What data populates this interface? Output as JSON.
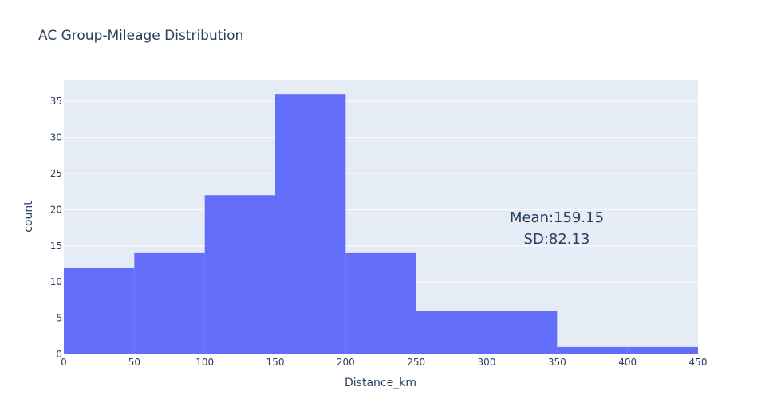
{
  "chart_data": {
    "type": "bar",
    "subtype": "histogram",
    "title": "AC Group-Mileage Distribution",
    "xlabel": "Distance_km",
    "ylabel": "count",
    "bins": [
      {
        "x0": 0,
        "x1": 50,
        "count": 12
      },
      {
        "x0": 50,
        "x1": 100,
        "count": 14
      },
      {
        "x0": 100,
        "x1": 150,
        "count": 22
      },
      {
        "x0": 150,
        "x1": 200,
        "count": 36
      },
      {
        "x0": 200,
        "x1": 250,
        "count": 14
      },
      {
        "x0": 250,
        "x1": 300,
        "count": 6
      },
      {
        "x0": 300,
        "x1": 350,
        "count": 6
      },
      {
        "x0": 350,
        "x1": 400,
        "count": 1
      },
      {
        "x0": 400,
        "x1": 450,
        "count": 1
      }
    ],
    "xlim": [
      0,
      450
    ],
    "ylim": [
      0,
      38
    ],
    "xticks": [
      0,
      50,
      100,
      150,
      200,
      250,
      300,
      350,
      400,
      450
    ],
    "yticks": [
      0,
      5,
      10,
      15,
      20,
      25,
      30,
      35
    ],
    "grid": true,
    "annotations": [
      "Mean:159.15",
      "SD:82.13"
    ],
    "colors": {
      "bar": "#636efa",
      "plot_bg": "#e5ecf6",
      "grid": "#ffffff",
      "text": "#2a3f5f"
    }
  }
}
